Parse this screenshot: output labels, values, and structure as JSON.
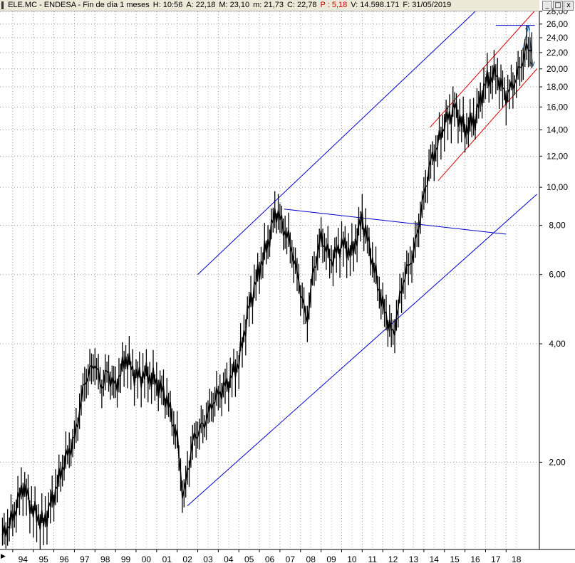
{
  "title_bar": {
    "segments": [
      {
        "text": "ELE.MC - ENDESA - Fin de día 1 meses",
        "color": "#000000"
      },
      {
        "text": "H: 10:56",
        "color": "#000000"
      },
      {
        "text": "A: 22,18",
        "color": "#000000"
      },
      {
        "text": "M: 23,10",
        "color": "#000000"
      },
      {
        "text": "m: 21,73",
        "color": "#000000"
      },
      {
        "text": "C: 22,78",
        "color": "#000000"
      },
      {
        "text": "P : 5,18",
        "color": "#d00000"
      },
      {
        "text": "V: 14.598.171",
        "color": "#000000"
      },
      {
        "text": "F: 31/05/2019",
        "color": "#000000"
      }
    ],
    "buttons": {
      "minimize": "_",
      "restore": "□",
      "close": "x"
    }
  },
  "chart_data": {
    "type": "line",
    "scale": "log",
    "ylim": [
      1.2,
      28
    ],
    "y_ticks": [
      "2,00",
      "4,00",
      "6,00",
      "8,00",
      "10,00",
      "12,00",
      "14,00",
      "16,00",
      "18,00",
      "20,00",
      "22,00",
      "24,00",
      "26,00",
      "28,00"
    ],
    "x_tick_labels": [
      "94",
      "95",
      "96",
      "97",
      "98",
      "99",
      "00",
      "01",
      "02",
      "03",
      "04",
      "05",
      "06",
      "07",
      "08",
      "09",
      "10",
      "11",
      "12",
      "13",
      "14",
      "15",
      "16",
      "17",
      "18"
    ],
    "grid": true,
    "colors": {
      "price": "#000000",
      "channel": "#0000cc",
      "trend": "#dd0000",
      "arrow": "#1f5fa0"
    },
    "series": [
      {
        "x": [
          1993.5,
          1994.0,
          1994.5,
          1995.0,
          1995.5,
          1996.0,
          1996.5,
          1997.0,
          1997.5,
          1998.0,
          1998.3,
          1998.6,
          1999.0,
          1999.5,
          2000.0,
          2000.5,
          2001.0,
          2001.5,
          2002.0,
          2002.3,
          2002.5,
          2002.8,
          2003.3,
          2003.8,
          2004.5,
          2005.0,
          2005.5,
          2006.0,
          2006.5,
          2006.8,
          2007.0,
          2007.5,
          2008.0,
          2008.3,
          2008.6,
          2009.0,
          2009.5,
          2010.0,
          2010.5,
          2011.0,
          2011.5,
          2012.0,
          2012.5,
          2013.0,
          2013.5,
          2014.0,
          2014.3,
          2014.6,
          2015.0,
          2015.5,
          2016.0,
          2016.5,
          2017.0,
          2017.5,
          2018.0,
          2018.5,
          2018.8,
          2019.0,
          2019.3
        ],
        "values": [
          1.3,
          1.45,
          1.75,
          1.5,
          1.4,
          1.65,
          2.0,
          2.3,
          3.2,
          3.6,
          3.1,
          3.4,
          3.1,
          3.7,
          3.3,
          3.35,
          3.2,
          2.9,
          2.3,
          1.6,
          1.9,
          2.3,
          2.5,
          2.9,
          3.2,
          3.6,
          5.0,
          6.2,
          7.5,
          8.8,
          8.3,
          7.2,
          5.5,
          4.5,
          6.0,
          7.5,
          6.5,
          7.2,
          6.8,
          8.4,
          6.5,
          5.0,
          4.2,
          5.8,
          6.8,
          9.5,
          11.5,
          12.5,
          14.5,
          16.0,
          14.0,
          15.0,
          18.5,
          19.5,
          17.0,
          19.0,
          21.0,
          22.5,
          22.8
        ]
      }
    ],
    "overlays": [
      {
        "kind": "channel",
        "color": "#0000cc",
        "from": [
          2003.0,
          6.0
        ],
        "to": [
          2016.5,
          28.0
        ]
      },
      {
        "kind": "channel",
        "color": "#0000cc",
        "from": [
          2002.5,
          1.55
        ],
        "to": [
          2019.5,
          9.6
        ]
      },
      {
        "kind": "trend",
        "color": "#0000cc",
        "from": [
          2007.2,
          8.8
        ],
        "to": [
          2018.0,
          7.6
        ]
      },
      {
        "kind": "channel",
        "color": "#dd0000",
        "from": [
          2014.3,
          14.2
        ],
        "to": [
          2019.5,
          28.5
        ]
      },
      {
        "kind": "channel",
        "color": "#dd0000",
        "from": [
          2014.7,
          10.4
        ],
        "to": [
          2019.5,
          20.0
        ]
      },
      {
        "kind": "level",
        "color": "#0000cc",
        "from": [
          2017.5,
          25.8
        ],
        "to": [
          2019.4,
          25.8
        ]
      },
      {
        "kind": "arrow",
        "color": "#1f5fa0",
        "from": [
          2018.8,
          22.3
        ],
        "to": [
          2019.1,
          25.8
        ]
      },
      {
        "kind": "arrow",
        "color": "#1f5fa0",
        "from": [
          2019.1,
          25.8
        ],
        "to": [
          2019.3,
          20.3
        ]
      }
    ]
  }
}
